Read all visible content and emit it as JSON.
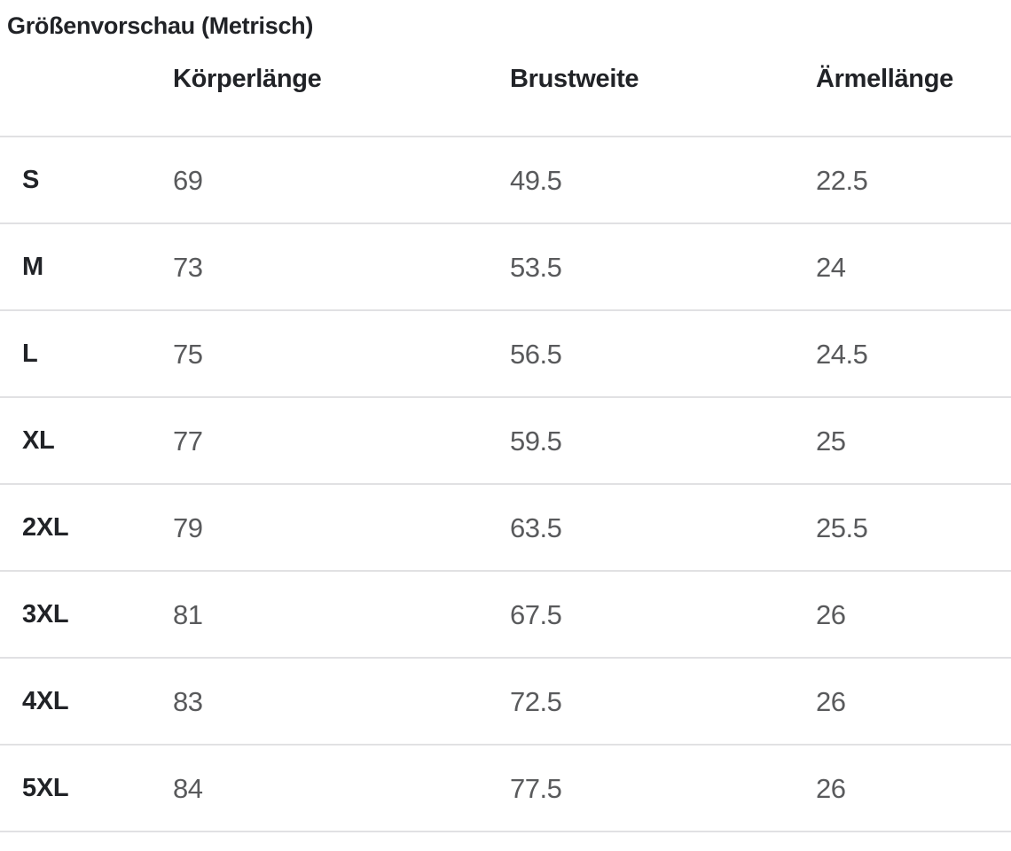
{
  "title": "Größenvorschau (Metrisch)",
  "chart_data": {
    "type": "table",
    "title": "Größenvorschau (Metrisch)",
    "columns": [
      "Körperlänge",
      "Brustweite",
      "Ärmellänge"
    ],
    "rows": [
      {
        "size": "S",
        "values": [
          "69",
          "49.5",
          "22.5"
        ]
      },
      {
        "size": "M",
        "values": [
          "73",
          "53.5",
          "24"
        ]
      },
      {
        "size": "L",
        "values": [
          "75",
          "56.5",
          "24.5"
        ]
      },
      {
        "size": "XL",
        "values": [
          "77",
          "59.5",
          "25"
        ]
      },
      {
        "size": "2XL",
        "values": [
          "79",
          "63.5",
          "25.5"
        ]
      },
      {
        "size": "3XL",
        "values": [
          "81",
          "67.5",
          "26"
        ]
      },
      {
        "size": "4XL",
        "values": [
          "83",
          "72.5",
          "26"
        ]
      },
      {
        "size": "5XL",
        "values": [
          "84",
          "77.5",
          "26"
        ]
      }
    ],
    "layout": {
      "grid": "horizontal-dividers-only",
      "legend": "none"
    }
  },
  "colors": {
    "heading_text": "#212327",
    "value_text": "#595a5c",
    "divider": "#e1e1e3",
    "background": "#ffffff"
  }
}
